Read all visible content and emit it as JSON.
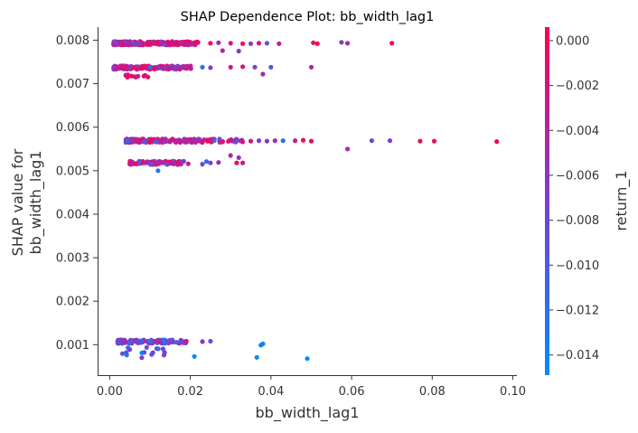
{
  "chart_data": {
    "type": "scatter",
    "title": "SHAP Dependence Plot: bb_width_lag1",
    "xlabel": "bb_width_lag1",
    "ylabel_lines": [
      "SHAP value for",
      "bb_width_lag1"
    ],
    "xlim": [
      -0.003,
      0.101
    ],
    "ylim": [
      0.0003,
      0.0083
    ],
    "xticks": [
      0.0,
      0.02,
      0.04,
      0.06,
      0.08,
      0.1
    ],
    "xtick_labels": [
      "0.00",
      "0.02",
      "0.04",
      "0.06",
      "0.08",
      "0.10"
    ],
    "yticks": [
      0.001,
      0.002,
      0.003,
      0.004,
      0.005,
      0.006,
      0.007,
      0.008
    ],
    "ytick_labels": [
      "0.001",
      "0.002",
      "0.003",
      "0.004",
      "0.005",
      "0.006",
      "0.007",
      "0.008"
    ],
    "colorbar": {
      "label": "return_1",
      "range": [
        -0.0149,
        0.0006
      ],
      "ticks": [
        0.0,
        -0.002,
        -0.004,
        -0.006,
        -0.008,
        -0.01,
        -0.012,
        -0.014
      ],
      "tick_labels": [
        "0.000",
        "−0.002",
        "−0.004",
        "−0.006",
        "−0.008",
        "−0.010",
        "−0.012",
        "−0.014"
      ],
      "colors": [
        "#008bfb",
        "#ff0052"
      ]
    },
    "clusters": [
      {
        "x_min": 0.001,
        "x_max": 0.022,
        "y": 0.00793,
        "y_spread": 4e-05,
        "n": 260,
        "c_min": -0.009,
        "c_max": 0.0006
      },
      {
        "x_min": 0.001,
        "x_max": 0.021,
        "y": 0.00737,
        "y_spread": 4e-05,
        "n": 150,
        "c_min": -0.01,
        "c_max": 0.0006
      },
      {
        "x_min": 0.004,
        "x_max": 0.01,
        "y": 0.00718,
        "y_spread": 3e-05,
        "n": 14,
        "c_min": -0.004,
        "c_max": 0.0006
      },
      {
        "x_min": 0.004,
        "x_max": 0.033,
        "y": 0.00569,
        "y_spread": 4e-05,
        "n": 170,
        "c_min": -0.012,
        "c_max": 0.0006
      },
      {
        "x_min": 0.005,
        "x_max": 0.02,
        "y": 0.00518,
        "y_spread": 4e-05,
        "n": 90,
        "c_min": -0.012,
        "c_max": 0.0006
      },
      {
        "x_min": 0.002,
        "x_max": 0.019,
        "y": 0.00107,
        "y_spread": 4e-05,
        "n": 120,
        "c_min": -0.0149,
        "c_max": -0.004
      },
      {
        "x_min": 0.003,
        "x_max": 0.014,
        "y": 0.00082,
        "y_spread": 0.00012,
        "n": 16,
        "c_min": -0.0149,
        "c_max": -0.007
      }
    ],
    "points": [
      {
        "x": 0.07,
        "y": 0.00793,
        "c": 0.0002
      },
      {
        "x": 0.0505,
        "y": 0.00794,
        "c": -0.001
      },
      {
        "x": 0.0515,
        "y": 0.00792,
        "c": 0.0003
      },
      {
        "x": 0.0575,
        "y": 0.00795,
        "c": -0.007
      },
      {
        "x": 0.059,
        "y": 0.00793,
        "c": -0.004
      },
      {
        "x": 0.042,
        "y": 0.00792,
        "c": -0.003
      },
      {
        "x": 0.039,
        "y": 0.00793,
        "c": -0.009
      },
      {
        "x": 0.035,
        "y": 0.00792,
        "c": -0.007
      },
      {
        "x": 0.03,
        "y": 0.00793,
        "c": -0.002
      },
      {
        "x": 0.027,
        "y": 0.00794,
        "c": -0.005
      },
      {
        "x": 0.025,
        "y": 0.00793,
        "c": 0.0001
      },
      {
        "x": 0.033,
        "y": 0.00792,
        "c": -0.0005
      },
      {
        "x": 0.037,
        "y": 0.00793,
        "c": -0.0015
      },
      {
        "x": 0.032,
        "y": 0.00775,
        "c": -0.006
      },
      {
        "x": 0.028,
        "y": 0.00776,
        "c": -0.004
      },
      {
        "x": 0.05,
        "y": 0.00738,
        "c": -0.004
      },
      {
        "x": 0.04,
        "y": 0.00738,
        "c": -0.01
      },
      {
        "x": 0.036,
        "y": 0.00738,
        "c": -0.007
      },
      {
        "x": 0.033,
        "y": 0.00739,
        "c": -0.001
      },
      {
        "x": 0.03,
        "y": 0.00738,
        "c": -0.002
      },
      {
        "x": 0.025,
        "y": 0.00737,
        "c": -0.006
      },
      {
        "x": 0.023,
        "y": 0.00738,
        "c": -0.012
      },
      {
        "x": 0.038,
        "y": 0.00722,
        "c": -0.005
      },
      {
        "x": 0.01,
        "y": 0.00738,
        "c": -0.013
      },
      {
        "x": 0.096,
        "y": 0.00567,
        "c": -0.0002
      },
      {
        "x": 0.0805,
        "y": 0.00568,
        "c": -0.0005
      },
      {
        "x": 0.077,
        "y": 0.00568,
        "c": -0.001
      },
      {
        "x": 0.0695,
        "y": 0.00569,
        "c": -0.007
      },
      {
        "x": 0.065,
        "y": 0.00569,
        "c": -0.009
      },
      {
        "x": 0.059,
        "y": 0.0055,
        "c": -0.005
      },
      {
        "x": 0.05,
        "y": 0.00568,
        "c": -0.001
      },
      {
        "x": 0.048,
        "y": 0.0057,
        "c": 0.0001
      },
      {
        "x": 0.046,
        "y": 0.00569,
        "c": -0.003
      },
      {
        "x": 0.043,
        "y": 0.00569,
        "c": -0.012
      },
      {
        "x": 0.041,
        "y": 0.00569,
        "c": -0.005
      },
      {
        "x": 0.039,
        "y": 0.00568,
        "c": -0.006
      },
      {
        "x": 0.037,
        "y": 0.00569,
        "c": -0.007
      },
      {
        "x": 0.035,
        "y": 0.00568,
        "c": -0.002
      },
      {
        "x": 0.032,
        "y": 0.0053,
        "c": -0.006
      },
      {
        "x": 0.03,
        "y": 0.00535,
        "c": -0.004
      },
      {
        "x": 0.033,
        "y": 0.00518,
        "c": -0.002
      },
      {
        "x": 0.0315,
        "y": 0.00518,
        "c": -0.001
      },
      {
        "x": 0.027,
        "y": 0.00519,
        "c": -0.005
      },
      {
        "x": 0.025,
        "y": 0.00518,
        "c": -0.007
      },
      {
        "x": 0.024,
        "y": 0.00521,
        "c": -0.011
      },
      {
        "x": 0.023,
        "y": 0.00515,
        "c": -0.009
      },
      {
        "x": 0.012,
        "y": 0.005,
        "c": -0.013
      },
      {
        "x": 0.049,
        "y": 0.00068,
        "c": -0.0148
      },
      {
        "x": 0.038,
        "y": 0.00102,
        "c": -0.0145
      },
      {
        "x": 0.0375,
        "y": 0.00099,
        "c": -0.014
      },
      {
        "x": 0.0365,
        "y": 0.00071,
        "c": -0.0146
      },
      {
        "x": 0.021,
        "y": 0.00073,
        "c": -0.0145
      },
      {
        "x": 0.025,
        "y": 0.00108,
        "c": -0.009
      },
      {
        "x": 0.023,
        "y": 0.00107,
        "c": -0.006
      },
      {
        "x": 0.018,
        "y": 0.00107,
        "c": -0.008
      },
      {
        "x": 0.019,
        "y": 0.00108,
        "c": -0.002
      }
    ]
  }
}
